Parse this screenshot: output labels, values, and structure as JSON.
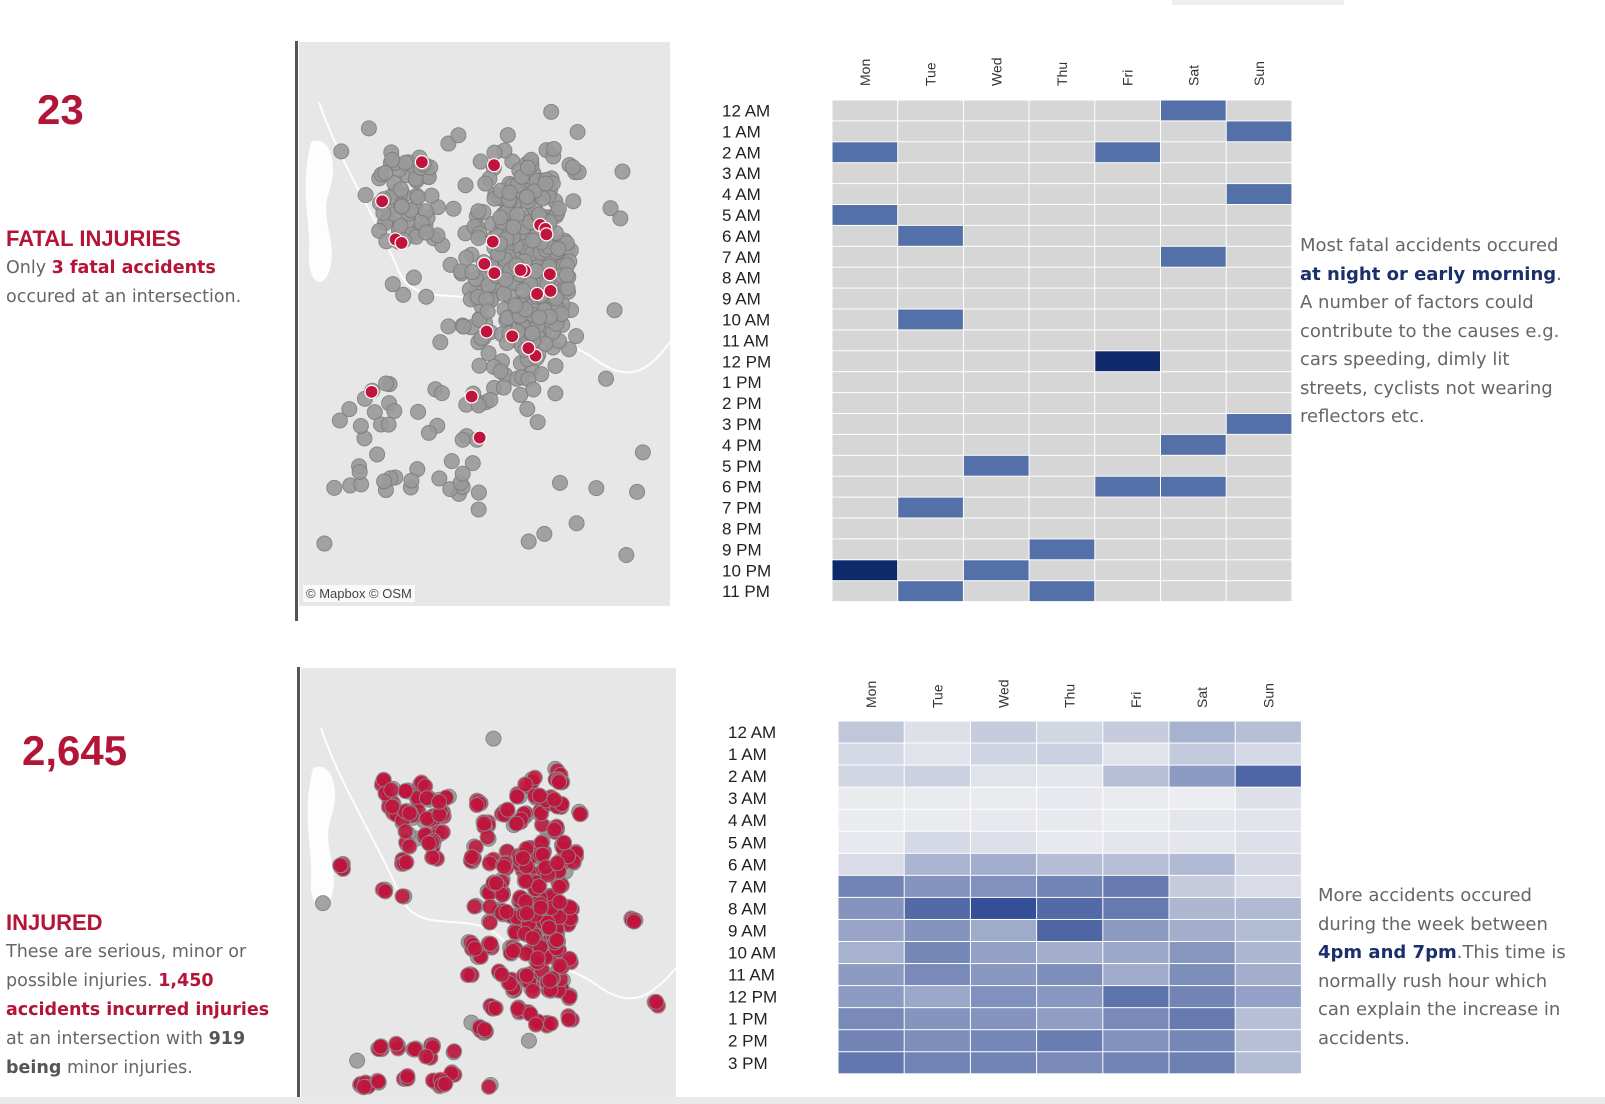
{
  "fatal": {
    "count": "23",
    "heading": "FATAL INJURIES",
    "desc_pre": "Only ",
    "desc_highlight": "3 fatal accidents",
    "desc_post": " occured at an intersection.",
    "map_credit": "© Mapbox  © OSM",
    "note_pre": "Most fatal accidents occured ",
    "note_highlight": "at night or early morning",
    "note_post": ". A number of factors could contribute to the causes e.g. cars speeding, dimly lit streets, cyclists not wearing reflectors etc."
  },
  "injured": {
    "count": "2,645",
    "heading": "INJURED",
    "desc_pre": "These are serious, minor or possible injuries. ",
    "desc_highlight": "1,450 accidents incurred injuries",
    "desc_mid": " at an intersection with ",
    "desc_bold": "919 being",
    "desc_post": " minor injuries.",
    "note_pre": "More accidents occured during the week between ",
    "note_highlight": "4pm and 7pm",
    "note_post": ".This time is normally rush hour which can explain the increase in accidents."
  },
  "colors": {
    "accent_red": "#b31536",
    "navy": "#0f2a6b",
    "mid_blue": "#5470a8",
    "empty_cell": "#d6d6d6",
    "map_dot_gray": "#9a9a9a",
    "map_dot_red": "#c0143c"
  },
  "chart_data": [
    {
      "type": "heatmap",
      "title": "",
      "x_categories": [
        "Mon",
        "Tue",
        "Wed",
        "Thu",
        "Fri",
        "Sat",
        "Sun"
      ],
      "y_categories": [
        "12 AM",
        "1 AM",
        "2 AM",
        "3 AM",
        "4 AM",
        "5 AM",
        "6 AM",
        "7 AM",
        "8 AM",
        "9 AM",
        "10 AM",
        "11 AM",
        "12 PM",
        "1 PM",
        "2 PM",
        "3 PM",
        "4 PM",
        "5 PM",
        "6 PM",
        "7 PM",
        "8 PM",
        "9 PM",
        "10 PM",
        "11 PM"
      ],
      "values": [
        [
          0,
          0,
          0,
          0,
          0,
          1,
          0
        ],
        [
          0,
          0,
          0,
          0,
          0,
          0,
          1
        ],
        [
          1,
          0,
          0,
          0,
          1,
          0,
          0
        ],
        [
          0,
          0,
          0,
          0,
          0,
          0,
          0
        ],
        [
          0,
          0,
          0,
          0,
          0,
          0,
          1
        ],
        [
          1,
          0,
          0,
          0,
          0,
          0,
          0
        ],
        [
          0,
          1,
          0,
          0,
          0,
          0,
          0
        ],
        [
          0,
          0,
          0,
          0,
          0,
          1,
          0
        ],
        [
          0,
          0,
          0,
          0,
          0,
          0,
          0
        ],
        [
          0,
          0,
          0,
          0,
          0,
          0,
          0
        ],
        [
          0,
          1,
          0,
          0,
          0,
          0,
          0
        ],
        [
          0,
          0,
          0,
          0,
          0,
          0,
          0
        ],
        [
          0,
          0,
          0,
          0,
          2,
          0,
          0
        ],
        [
          0,
          0,
          0,
          0,
          0,
          0,
          0
        ],
        [
          0,
          0,
          0,
          0,
          0,
          0,
          0
        ],
        [
          0,
          0,
          0,
          0,
          0,
          0,
          1
        ],
        [
          0,
          0,
          0,
          0,
          0,
          1,
          0
        ],
        [
          0,
          0,
          1,
          0,
          0,
          0,
          0
        ],
        [
          0,
          0,
          0,
          0,
          1,
          1,
          0
        ],
        [
          0,
          1,
          0,
          0,
          0,
          0,
          0
        ],
        [
          0,
          0,
          0,
          0,
          0,
          0,
          0
        ],
        [
          0,
          0,
          0,
          1,
          0,
          0,
          0
        ],
        [
          2,
          0,
          1,
          0,
          0,
          0,
          0
        ],
        [
          0,
          1,
          0,
          1,
          0,
          0,
          0
        ]
      ]
    },
    {
      "type": "heatmap",
      "title": "",
      "x_categories": [
        "Mon",
        "Tue",
        "Wed",
        "Thu",
        "Fri",
        "Sat",
        "Sun"
      ],
      "y_categories": [
        "12 AM",
        "1 AM",
        "2 AM",
        "3 AM",
        "4 AM",
        "5 AM",
        "6 AM",
        "7 AM",
        "8 AM",
        "9 AM",
        "10 AM",
        "11 AM",
        "12 PM",
        "1 PM",
        "2 PM",
        "3 PM"
      ],
      "values": [
        [
          0.25,
          0.1,
          0.22,
          0.16,
          0.22,
          0.38,
          0.3
        ],
        [
          0.14,
          0.08,
          0.17,
          0.19,
          0.08,
          0.24,
          0.14
        ],
        [
          0.16,
          0.19,
          0.08,
          0.06,
          0.3,
          0.52,
          0.85
        ],
        [
          0.03,
          0.03,
          0.03,
          0.04,
          0.03,
          0.02,
          0.1
        ],
        [
          0.03,
          0.03,
          0.04,
          0.04,
          0.03,
          0.06,
          0.08
        ],
        [
          0.04,
          0.14,
          0.1,
          0.04,
          0.06,
          0.06,
          0.1
        ],
        [
          0.12,
          0.36,
          0.4,
          0.31,
          0.3,
          0.33,
          0.14
        ],
        [
          0.66,
          0.56,
          0.58,
          0.66,
          0.72,
          0.22,
          0.12
        ],
        [
          0.56,
          0.82,
          0.98,
          0.82,
          0.72,
          0.35,
          0.33
        ],
        [
          0.46,
          0.56,
          0.42,
          0.84,
          0.52,
          0.4,
          0.32
        ],
        [
          0.38,
          0.64,
          0.48,
          0.4,
          0.44,
          0.54,
          0.35
        ],
        [
          0.52,
          0.62,
          0.54,
          0.6,
          0.42,
          0.6,
          0.4
        ],
        [
          0.52,
          0.44,
          0.58,
          0.54,
          0.76,
          0.66,
          0.48
        ],
        [
          0.62,
          0.56,
          0.56,
          0.5,
          0.62,
          0.72,
          0.3
        ],
        [
          0.66,
          0.6,
          0.64,
          0.7,
          0.58,
          0.64,
          0.3
        ],
        [
          0.74,
          0.66,
          0.66,
          0.62,
          0.66,
          0.68,
          0.32
        ]
      ]
    }
  ]
}
